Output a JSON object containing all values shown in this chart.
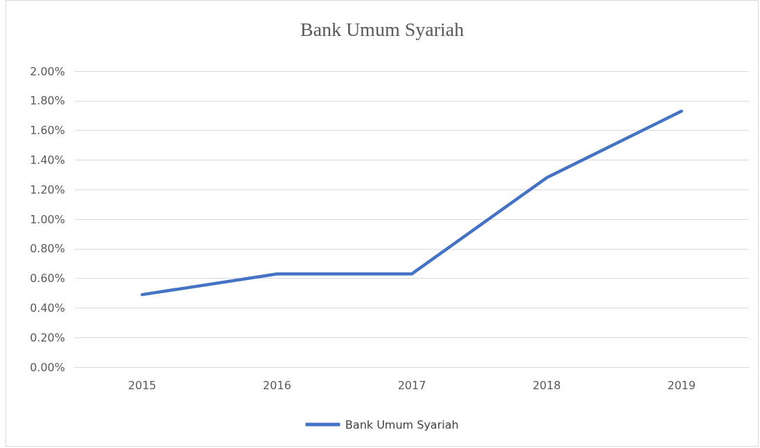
{
  "chart_data": {
    "type": "line",
    "title": "Bank Umum Syariah",
    "categories": [
      "2015",
      "2016",
      "2017",
      "2018",
      "2019"
    ],
    "series": [
      {
        "name": "Bank Umum Syariah",
        "color": "#4472c4",
        "values": [
          0.49,
          0.63,
          0.63,
          1.28,
          1.73
        ]
      }
    ],
    "ylim": [
      0,
      2
    ],
    "yticks": [
      {
        "value": 0,
        "label": "0.00%"
      },
      {
        "value": 0.2,
        "label": "0.20%"
      },
      {
        "value": 0.4,
        "label": "0.40%"
      },
      {
        "value": 0.6,
        "label": "0.60%"
      },
      {
        "value": 0.8,
        "label": "0.80%"
      },
      {
        "value": 1,
        "label": "1.00%"
      },
      {
        "value": 1.2,
        "label": "1.20%"
      },
      {
        "value": 1.4,
        "label": "1.40%"
      },
      {
        "value": 1.6,
        "label": "1.60%"
      },
      {
        "value": 1.8,
        "label": "1.80%"
      },
      {
        "value": 2,
        "label": "2.00%"
      }
    ],
    "grid": "y",
    "legend": "bottom",
    "marker": "none",
    "line_style": "solid"
  }
}
